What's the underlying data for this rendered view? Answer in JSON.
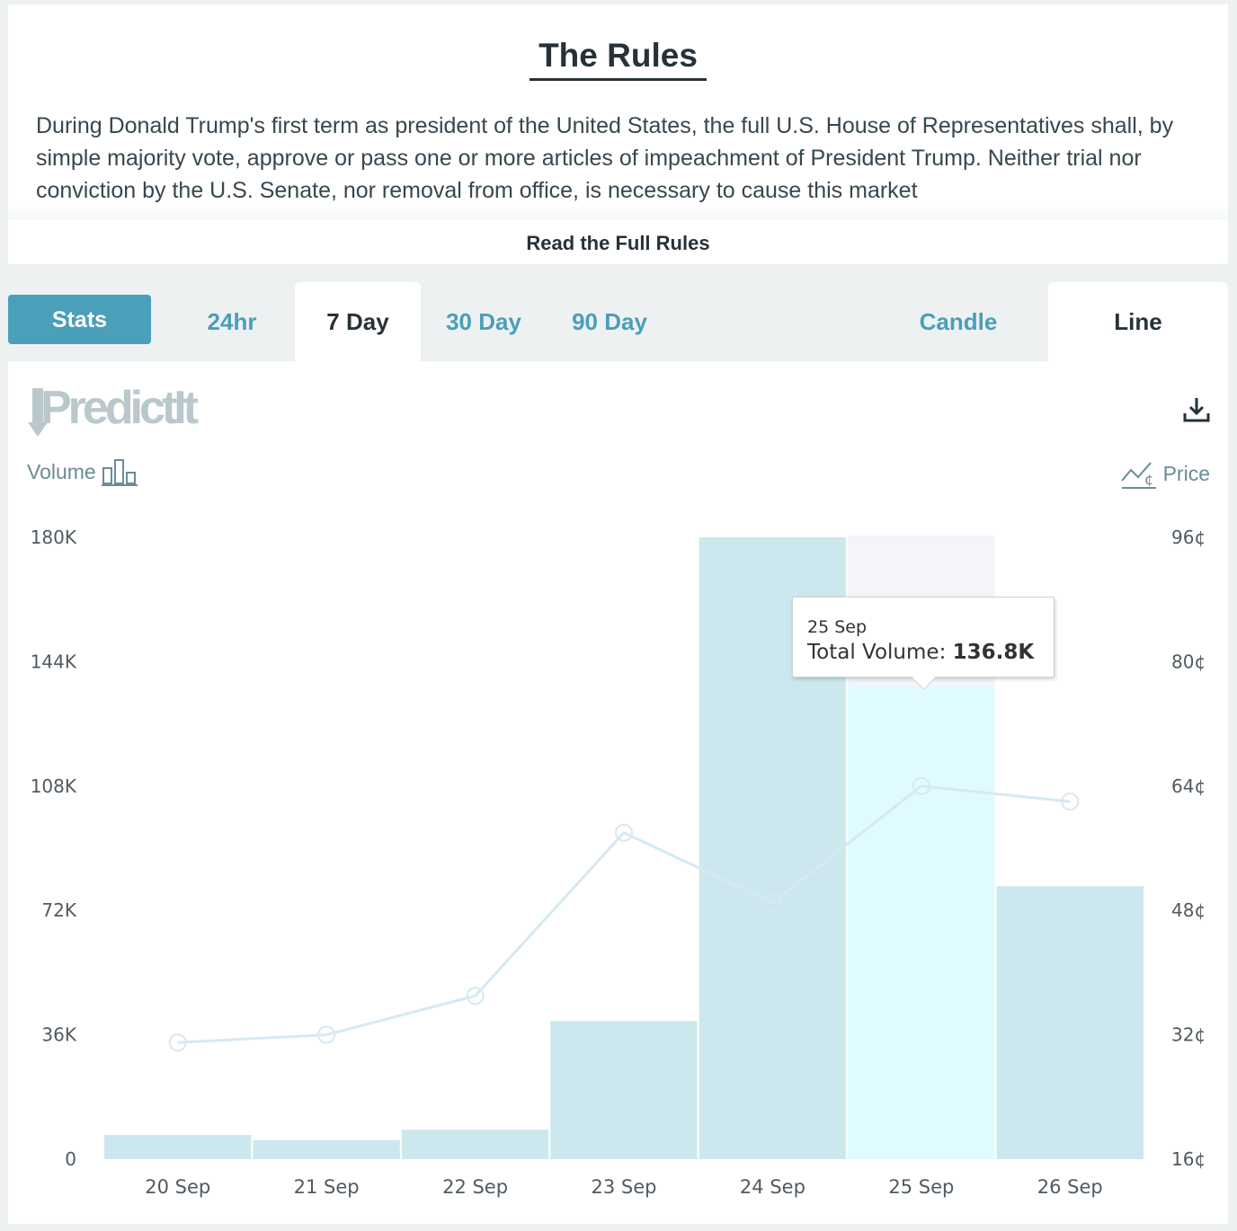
{
  "rules": {
    "title": "The Rules",
    "text": "During Donald Trump's first term as president of the United States, the full U.S. House of Representatives shall, by simple majority vote, approve or pass one or more articles of impeachment of President Trump. Neither trial nor conviction by the U.S. Senate, nor removal from office, is necessary to cause this market",
    "read_more": "Read the Full Rules"
  },
  "tabs": {
    "stats": "Stats",
    "ranges": [
      "24hr",
      "7 Day",
      "30 Day",
      "90 Day"
    ],
    "active_range": "7 Day",
    "types": [
      "Candle",
      "Line"
    ],
    "active_type": "Line"
  },
  "brand": {
    "logo": "PredictIt"
  },
  "legend": {
    "volume": "Volume",
    "price": "Price"
  },
  "icons": {
    "download": "download-icon",
    "volume": "bar-chart-icon",
    "price": "line-chart-icon"
  },
  "colors": {
    "accent": "#4a9fb9",
    "bar": "#cce8ee",
    "bar_hover": "#e0fbff",
    "hover_band": "#f3f5f9",
    "line": "#d5e9f3"
  },
  "tooltip": {
    "date": "25 Sep",
    "label": "Total Volume:",
    "value": "136.8K"
  },
  "chart_data": {
    "type": "bar",
    "categories": [
      "20 Sep",
      "21 Sep",
      "22 Sep",
      "23 Sep",
      "24 Sep",
      "25 Sep",
      "26 Sep"
    ],
    "series": [
      {
        "name": "Volume",
        "type": "bar",
        "axis": "left",
        "values": [
          7000,
          5500,
          8500,
          40000,
          180000,
          136800,
          79000
        ]
      },
      {
        "name": "Price",
        "type": "line",
        "axis": "right",
        "values": [
          31,
          32,
          37,
          58,
          49,
          64,
          62
        ]
      }
    ],
    "y_left": {
      "ticks": [
        "0",
        "36K",
        "72K",
        "108K",
        "144K",
        "180K"
      ],
      "range": [
        0,
        180000
      ]
    },
    "y_right": {
      "ticks": [
        "16¢",
        "32¢",
        "48¢",
        "64¢",
        "80¢",
        "96¢"
      ],
      "range": [
        16,
        96
      ]
    },
    "highlighted": "25 Sep",
    "grid": false
  }
}
